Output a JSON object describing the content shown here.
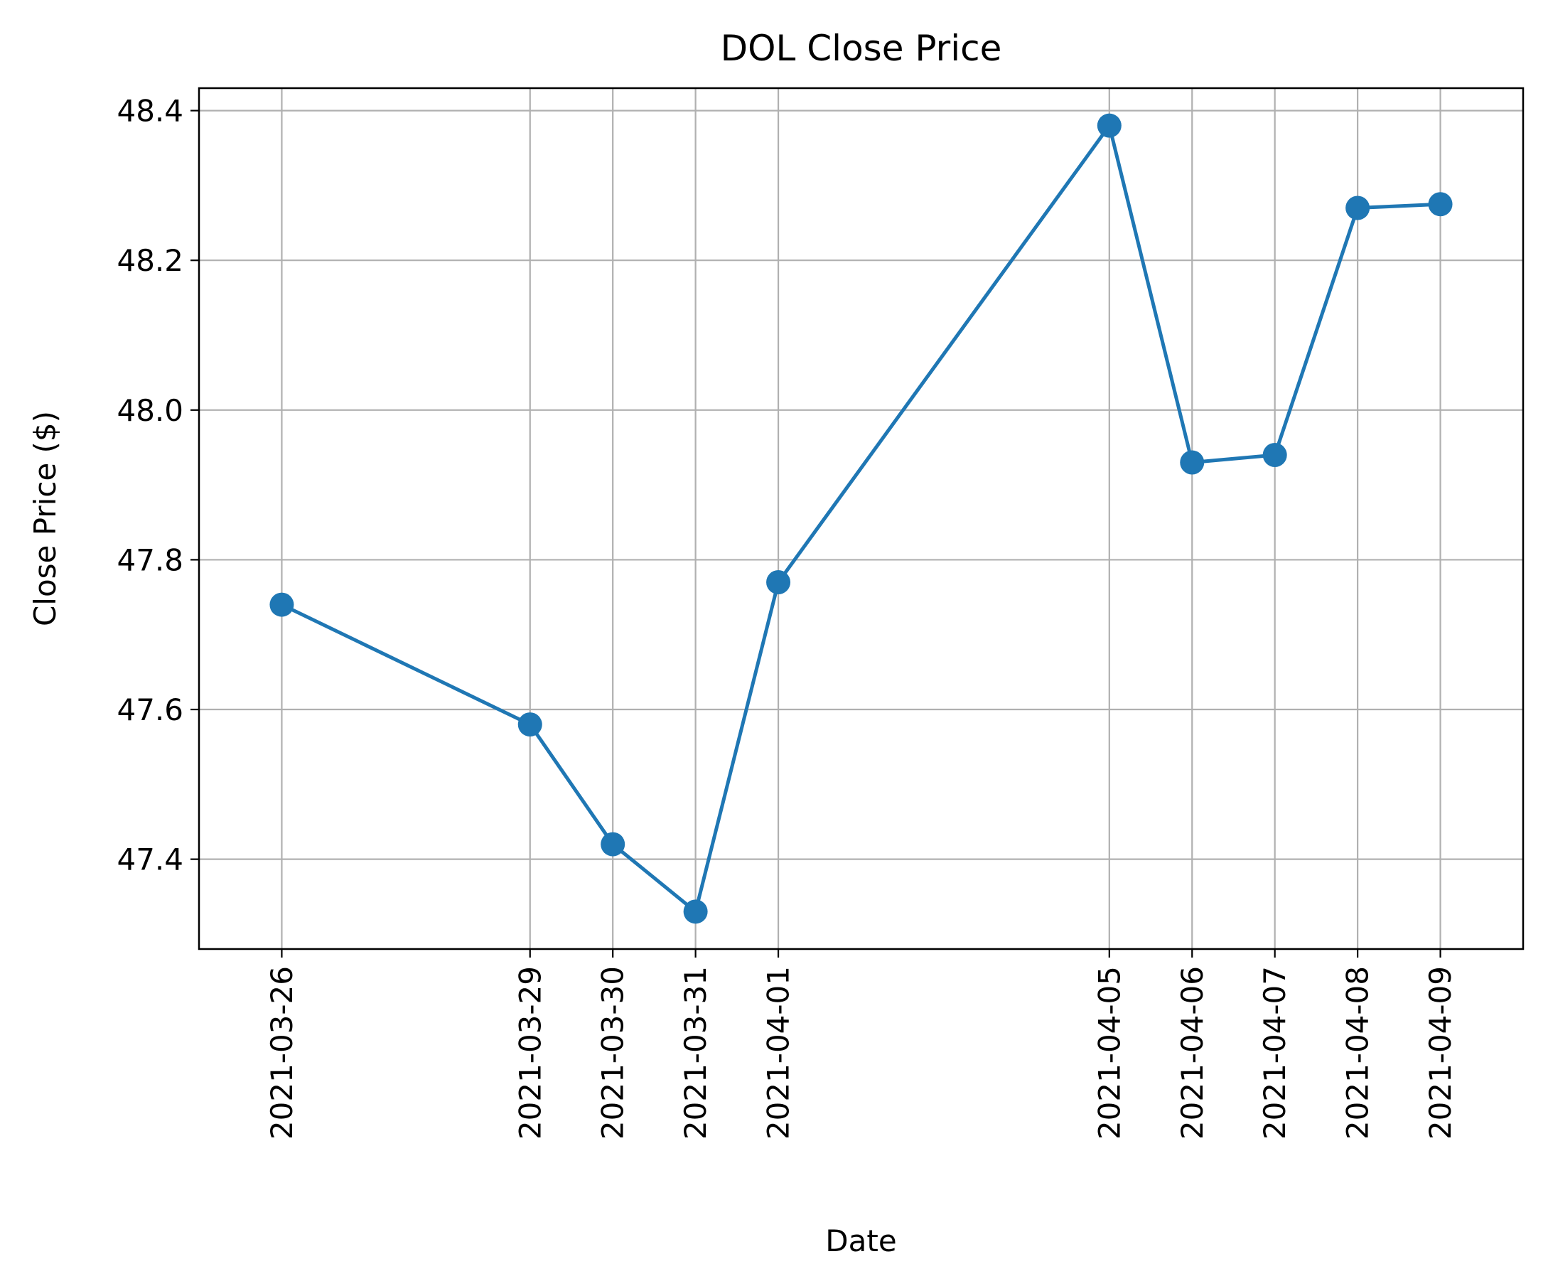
{
  "chart_data": {
    "type": "line",
    "title": "DOL Close Price",
    "xlabel": "Date",
    "ylabel": "Close Price ($)",
    "x": [
      "2021-03-26",
      "2021-03-29",
      "2021-03-30",
      "2021-03-31",
      "2021-04-01",
      "2021-04-05",
      "2021-04-06",
      "2021-04-07",
      "2021-04-08",
      "2021-04-09"
    ],
    "series": [
      {
        "name": "",
        "values": [
          47.74,
          47.58,
          47.42,
          47.33,
          47.77,
          48.38,
          47.93,
          47.94,
          48.27,
          48.275
        ],
        "color": "#1f77b4",
        "marker": "circle"
      }
    ],
    "xlim": [
      "2021-03-25",
      "2021-04-10"
    ],
    "ylim": [
      47.28,
      48.43
    ],
    "yticks": [
      47.4,
      47.6,
      47.8,
      48.0,
      48.2,
      48.4
    ],
    "ytick_labels": [
      "47.4",
      "47.6",
      "47.8",
      "48.0",
      "48.2",
      "48.4"
    ],
    "xtick_labels": [
      "2021-03-26",
      "2021-03-29",
      "2021-03-30",
      "2021-03-31",
      "2021-04-01",
      "2021-04-05",
      "2021-04-06",
      "2021-04-07",
      "2021-04-08",
      "2021-04-09"
    ],
    "xtick_rotation": 90,
    "grid": true,
    "grid_color": "#b0b0b0",
    "legend": "none"
  }
}
